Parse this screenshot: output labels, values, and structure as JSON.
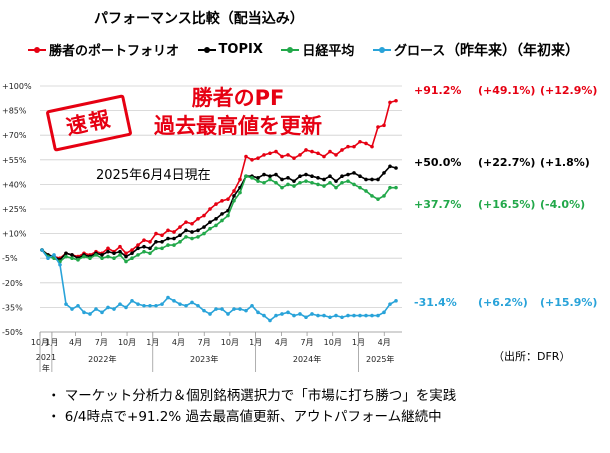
{
  "title": "パフォーマンス比較（配当込み）",
  "columns": {
    "prev_year": "（昨年来）",
    "ytd": "（年初来）"
  },
  "stamp": "速報",
  "headline": {
    "line1": "勝者のPF",
    "line2": "過去最高値を更新"
  },
  "as_of": "2025年6月4日現在",
  "source": "（出所：DFR）",
  "bullets": [
    "・ マーケット分析力＆個別銘柄選択力で「市場に打ち勝つ」を実践",
    "・ 6/4時点で+91.2% 過去最高値更新、アウトパフォーム継続中"
  ],
  "colors": {
    "portfolio": "#e60012",
    "topix": "#000000",
    "nikkei": "#22a84a",
    "growth": "#29a3d9"
  },
  "chart_data": {
    "type": "line",
    "title": "パフォーマンス比較（配当込み）",
    "ylim": [
      -50,
      100
    ],
    "yticks": [
      100,
      85,
      70,
      55,
      40,
      25,
      10,
      -5,
      -20,
      -35,
      -50
    ],
    "ytick_labels": [
      "+100%",
      "+85%",
      "+70%",
      "+55%",
      "+40%",
      "+25%",
      "+10%",
      "-5%",
      "-20%",
      "-35%",
      "-50%"
    ],
    "grid": true,
    "legend": "top",
    "x_ticks": [
      {
        "i": 0,
        "label": "10月"
      },
      {
        "i": 6,
        "label": "1月"
      },
      {
        "i": 18,
        "label": "4月"
      },
      {
        "i": 31,
        "label": "7月"
      },
      {
        "i": 44,
        "label": "10月"
      },
      {
        "i": 57,
        "label": "1月"
      },
      {
        "i": 70,
        "label": "4月"
      },
      {
        "i": 83,
        "label": "7月"
      },
      {
        "i": 96,
        "label": "10月"
      },
      {
        "i": 109,
        "label": "1月"
      },
      {
        "i": 122,
        "label": "4月"
      },
      {
        "i": 135,
        "label": "7月"
      },
      {
        "i": 148,
        "label": "10月"
      },
      {
        "i": 161,
        "label": "1月"
      },
      {
        "i": 174,
        "label": "4月"
      }
    ],
    "x_groups": [
      {
        "label": "2021年",
        "start": 0,
        "end": 6
      },
      {
        "label": "2022年",
        "start": 6,
        "end": 57
      },
      {
        "label": "2023年",
        "start": 57,
        "end": 109
      },
      {
        "label": "2024年",
        "start": 109,
        "end": 161
      },
      {
        "label": "2025年",
        "start": 161,
        "end": 183
      }
    ],
    "series": [
      {
        "name": "勝者のポートフォリオ",
        "color": "#e60012",
        "labels": [
          "+91.2%",
          "(+49.1%)",
          "(+12.9%)"
        ],
        "values": [
          0,
          -3,
          -4,
          -5,
          -2,
          -3,
          -4,
          -2,
          -3,
          -1,
          -2,
          1,
          -1,
          2,
          -2,
          0,
          3,
          6,
          5,
          10,
          9,
          12,
          11,
          14,
          17,
          16,
          19,
          21,
          25,
          28,
          30,
          31,
          36,
          43,
          57,
          55,
          56,
          58,
          59,
          60,
          57,
          58,
          56,
          58,
          61,
          60,
          59,
          57,
          60,
          58,
          61,
          63,
          63,
          66,
          65,
          63,
          75,
          76,
          90,
          91
        ]
      },
      {
        "name": "TOPIX",
        "color": "#000000",
        "labels": [
          "+50.0%",
          "(+22.7%)",
          "(+1.8%)"
        ],
        "values": [
          0,
          -3,
          -4,
          -6,
          -2,
          -3,
          -5,
          -3,
          -4,
          -2,
          -3,
          -1,
          -2,
          -1,
          -4,
          -2,
          1,
          2,
          1,
          5,
          5,
          7,
          7,
          9,
          12,
          11,
          12,
          14,
          17,
          19,
          22,
          24,
          33,
          38,
          45,
          45,
          44,
          46,
          45,
          46,
          43,
          44,
          42,
          45,
          46,
          45,
          44,
          43,
          45,
          42,
          45,
          46,
          47,
          45,
          43,
          43,
          43,
          47,
          51,
          50
        ]
      },
      {
        "name": "日経平均",
        "color": "#22a84a",
        "labels": [
          "+37.7%",
          "(+16.5%)",
          "(-4.0%)"
        ],
        "values": [
          0,
          -4,
          -5,
          -7,
          -4,
          -5,
          -6,
          -4,
          -5,
          -3,
          -5,
          -4,
          -5,
          -3,
          -7,
          -5,
          -3,
          -1,
          -2,
          1,
          1,
          3,
          3,
          5,
          8,
          7,
          8,
          10,
          13,
          15,
          18,
          21,
          30,
          35,
          45,
          44,
          42,
          41,
          43,
          41,
          38,
          40,
          39,
          41,
          42,
          41,
          40,
          39,
          41,
          38,
          41,
          42,
          40,
          38,
          36,
          33,
          31,
          33,
          38,
          38
        ]
      },
      {
        "name": "グロース",
        "color": "#29a3d9",
        "labels": [
          "-31.4%",
          "(+6.2%)",
          "(+15.9%)"
        ],
        "values": [
          0,
          -5,
          -3,
          -9,
          -33,
          -36,
          -34,
          -38,
          -39,
          -36,
          -38,
          -35,
          -36,
          -33,
          -35,
          -31,
          -33,
          -34,
          -34,
          -34,
          -33,
          -29,
          -31,
          -33,
          -34,
          -32,
          -34,
          -37,
          -39,
          -36,
          -36,
          -39,
          -36,
          -36,
          -37,
          -34,
          -38,
          -40,
          -43,
          -40,
          -39,
          -38,
          -40,
          -39,
          -41,
          -39,
          -40,
          -40,
          -41,
          -40,
          -41,
          -40,
          -40,
          -40,
          -40,
          -40,
          -40,
          -38,
          -33,
          -31
        ]
      }
    ]
  }
}
